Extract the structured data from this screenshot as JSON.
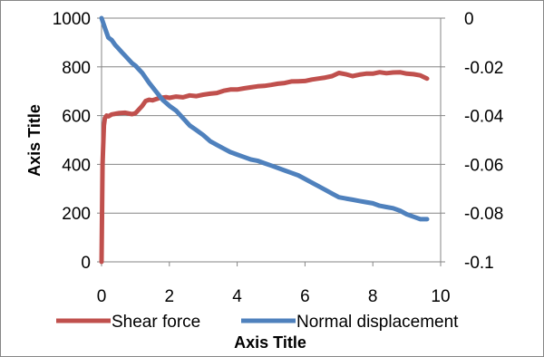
{
  "colors": {
    "shear": "#c0504d",
    "normal": "#4f81bd",
    "grid": "#868686",
    "axis": "#868686"
  },
  "chart_data": {
    "type": "line",
    "xlabel": "Axis Title",
    "ylabel": "Axis Title",
    "xlim": [
      0,
      10
    ],
    "ylim": [
      0,
      1000
    ],
    "y2lim": [
      -0.1,
      0
    ],
    "x_ticks": [
      "0",
      "2",
      "4",
      "6",
      "8",
      "10"
    ],
    "y_ticks": [
      "0",
      "200",
      "400",
      "600",
      "800",
      "1000"
    ],
    "y2_ticks": [
      "-0.1",
      "-0.08",
      "-0.06",
      "-0.04",
      "-0.02",
      "0"
    ],
    "legend_position": "bottom",
    "grid": true,
    "series": [
      {
        "name": "Shear force",
        "axis": "left",
        "color": "#c0504d",
        "x": [
          0.0,
          0.03,
          0.07,
          0.1,
          0.15,
          0.2,
          0.3,
          0.5,
          0.7,
          0.9,
          1.0,
          1.1,
          1.2,
          1.3,
          1.4,
          1.5,
          1.7,
          1.9,
          2.0,
          2.2,
          2.4,
          2.6,
          2.8,
          3.0,
          3.2,
          3.4,
          3.6,
          3.8,
          4.0,
          4.2,
          4.4,
          4.6,
          4.8,
          5.0,
          5.2,
          5.4,
          5.6,
          5.8,
          6.0,
          6.2,
          6.4,
          6.6,
          6.8,
          7.0,
          7.2,
          7.4,
          7.6,
          7.8,
          8.0,
          8.2,
          8.4,
          8.6,
          8.8,
          9.0,
          9.2,
          9.4,
          9.6
        ],
        "values": [
          0,
          400,
          560,
          590,
          600,
          597,
          605,
          610,
          612,
          606,
          610,
          625,
          640,
          660,
          665,
          663,
          672,
          676,
          673,
          678,
          675,
          683,
          680,
          686,
          690,
          693,
          702,
          707,
          707,
          712,
          716,
          720,
          722,
          726,
          731,
          734,
          740,
          741,
          742,
          748,
          752,
          756,
          762,
          775,
          770,
          762,
          768,
          772,
          772,
          778,
          774,
          777,
          778,
          772,
          770,
          765,
          752
        ]
      },
      {
        "name": "Normal displacement",
        "axis": "right",
        "color": "#4f81bd",
        "x": [
          0.0,
          0.1,
          0.2,
          0.3,
          0.4,
          0.5,
          0.6,
          0.7,
          0.8,
          0.9,
          1.0,
          1.1,
          1.2,
          1.4,
          1.6,
          1.8,
          2.0,
          2.2,
          2.4,
          2.6,
          2.8,
          3.0,
          3.2,
          3.4,
          3.6,
          3.8,
          4.0,
          4.2,
          4.4,
          4.6,
          4.8,
          5.0,
          5.2,
          5.4,
          5.6,
          5.8,
          6.0,
          6.2,
          6.4,
          6.6,
          6.8,
          7.0,
          7.2,
          7.4,
          7.6,
          7.8,
          8.0,
          8.2,
          8.4,
          8.6,
          8.8,
          9.0,
          9.2,
          9.4,
          9.6
        ],
        "values": [
          0,
          -0.004,
          -0.008,
          -0.009,
          -0.011,
          -0.0125,
          -0.014,
          -0.0155,
          -0.017,
          -0.0185,
          -0.0195,
          -0.021,
          -0.0225,
          -0.0265,
          -0.03,
          -0.0335,
          -0.036,
          -0.038,
          -0.041,
          -0.044,
          -0.046,
          -0.048,
          -0.0505,
          -0.052,
          -0.0535,
          -0.055,
          -0.056,
          -0.057,
          -0.058,
          -0.0585,
          -0.0595,
          -0.0605,
          -0.0615,
          -0.0625,
          -0.0635,
          -0.0645,
          -0.066,
          -0.0675,
          -0.069,
          -0.0705,
          -0.072,
          -0.0735,
          -0.074,
          -0.0745,
          -0.075,
          -0.0755,
          -0.076,
          -0.077,
          -0.0775,
          -0.078,
          -0.079,
          -0.0805,
          -0.0815,
          -0.0825,
          -0.0825
        ]
      }
    ]
  }
}
